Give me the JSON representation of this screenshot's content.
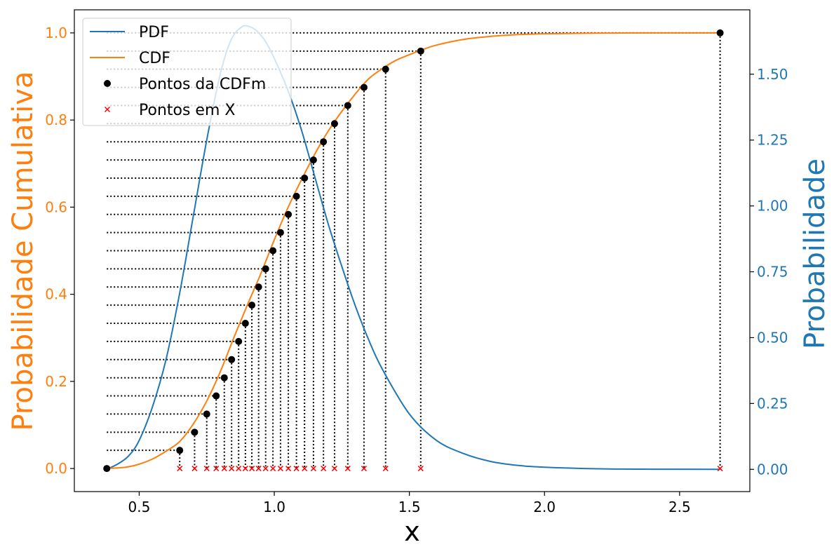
{
  "chart_data": {
    "type": "line",
    "xlabel": "x",
    "ylabel_left": "Probabilidade Cumulativa",
    "ylabel_right": "Probabilidade",
    "xlim": [
      0.26,
      2.76
    ],
    "ylim_left": [
      -0.053,
      1.053
    ],
    "ylim_right": [
      -0.0845,
      1.7445
    ],
    "x_ticks": [
      0.5,
      1.0,
      1.5,
      2.0,
      2.5
    ],
    "x_tick_labels": [
      "0.5",
      "1.0",
      "1.5",
      "2.0",
      "2.5"
    ],
    "y_left_ticks": [
      0.0,
      0.2,
      0.4,
      0.6,
      0.8,
      1.0
    ],
    "y_left_tick_labels": [
      "0.0",
      "0.2",
      "0.4",
      "0.6",
      "0.8",
      "1.0"
    ],
    "y_right_ticks": [
      0.0,
      0.25,
      0.5,
      0.75,
      1.0,
      1.25,
      1.5
    ],
    "y_right_tick_labels": [
      "0.00",
      "0.25",
      "0.50",
      "0.75",
      "1.00",
      "1.25",
      "1.50"
    ],
    "legend_position": "top-left",
    "grid": false,
    "series": [
      {
        "name": "PDF",
        "kind": "line",
        "axis": "right",
        "color": "#1f77b4",
        "x": [
          0.38,
          0.42,
          0.46,
          0.5,
          0.55,
          0.6,
          0.65,
          0.7,
          0.75,
          0.8,
          0.84,
          0.88,
          0.91,
          0.94,
          0.97,
          1.0,
          1.05,
          1.1,
          1.15,
          1.2,
          1.25,
          1.3,
          1.35,
          1.4,
          1.5,
          1.6,
          1.7,
          1.8,
          1.9,
          2.0,
          2.2,
          2.4,
          2.65
        ],
        "y": [
          0.0,
          0.02,
          0.05,
          0.11,
          0.24,
          0.42,
          0.67,
          0.96,
          1.25,
          1.5,
          1.63,
          1.68,
          1.68,
          1.66,
          1.62,
          1.56,
          1.44,
          1.29,
          1.11,
          0.93,
          0.77,
          0.62,
          0.49,
          0.38,
          0.21,
          0.11,
          0.06,
          0.03,
          0.015,
          0.008,
          0.002,
          0.0005,
          0.0
        ]
      },
      {
        "name": "CDF",
        "kind": "line",
        "axis": "left",
        "color": "#ff7f0e",
        "x": [
          0.38,
          0.45,
          0.5,
          0.55,
          0.6,
          0.65,
          0.7,
          0.75,
          0.8,
          0.85,
          0.9,
          0.95,
          1.0,
          1.05,
          1.1,
          1.15,
          1.2,
          1.25,
          1.3,
          1.35,
          1.4,
          1.45,
          1.5,
          1.55,
          1.6,
          1.7,
          1.8,
          1.9,
          2.0,
          2.2,
          2.4,
          2.65
        ],
        "y": [
          0.0,
          0.003,
          0.01,
          0.022,
          0.04,
          0.062,
          0.102,
          0.155,
          0.222,
          0.3,
          0.375,
          0.447,
          0.525,
          0.598,
          0.662,
          0.722,
          0.775,
          0.82,
          0.86,
          0.895,
          0.918,
          0.937,
          0.95,
          0.962,
          0.972,
          0.985,
          0.992,
          0.996,
          0.998,
          0.9995,
          1.0,
          1.0
        ]
      },
      {
        "name": "Pontos da CDFm",
        "kind": "markers",
        "axis": "left",
        "color": "#000000",
        "x": [
          0.38,
          0.65,
          0.705,
          0.75,
          0.785,
          0.815,
          0.842,
          0.868,
          0.893,
          0.917,
          0.942,
          0.968,
          0.995,
          1.023,
          1.052,
          1.082,
          1.112,
          1.145,
          1.182,
          1.223,
          1.272,
          1.332,
          1.412,
          1.542,
          2.65
        ],
        "y": [
          0.0,
          0.0417,
          0.0833,
          0.125,
          0.1667,
          0.2083,
          0.25,
          0.2917,
          0.3333,
          0.375,
          0.4167,
          0.4583,
          0.5,
          0.5417,
          0.5833,
          0.625,
          0.6667,
          0.7083,
          0.75,
          0.7917,
          0.8333,
          0.875,
          0.9167,
          0.9583,
          1.0
        ]
      },
      {
        "name": "Pontos em X",
        "kind": "markers",
        "axis": "left",
        "color": "#ff0000",
        "x": [
          0.38,
          0.65,
          0.705,
          0.75,
          0.785,
          0.815,
          0.842,
          0.868,
          0.893,
          0.917,
          0.942,
          0.968,
          0.995,
          1.023,
          1.052,
          1.082,
          1.112,
          1.145,
          1.182,
          1.223,
          1.272,
          1.332,
          1.412,
          1.542,
          2.65
        ],
        "y": [
          0,
          0,
          0,
          0,
          0,
          0,
          0,
          0,
          0,
          0,
          0,
          0,
          0,
          0,
          0,
          0,
          0,
          0,
          0,
          0,
          0,
          0,
          0,
          0,
          0
        ]
      }
    ],
    "colors": {
      "left_axis": "#ff7f0e",
      "right_axis": "#1f77b4",
      "guides": "#000000",
      "marker_cdfm": "#000000",
      "marker_x": "#ff0000"
    }
  }
}
